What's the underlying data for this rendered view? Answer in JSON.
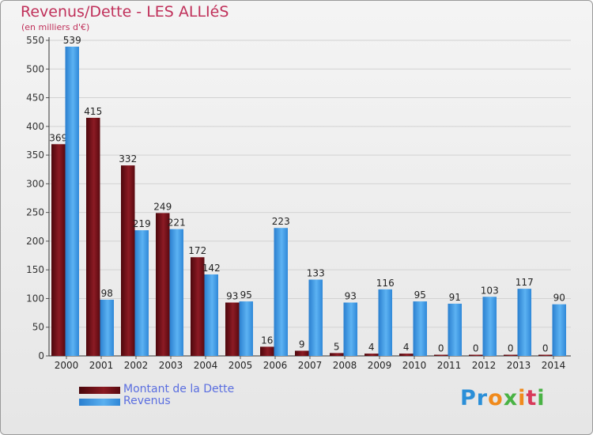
{
  "title": "Revenus/Dette - LES ALLIéS",
  "subtitle": "(en milliers d'€)",
  "legend": [
    {
      "label": "Montant de la Dette",
      "color": "#6b0d12"
    },
    {
      "label": "Revenus",
      "color": "#3c9ae8"
    }
  ],
  "logo": {
    "letters": [
      "P",
      "r",
      "o",
      "x",
      "i",
      "t",
      "i"
    ],
    "colors": [
      "#2b8fd8",
      "#2b8fd8",
      "#f08a1c",
      "#49b244",
      "#f08a1c",
      "#d83a5a",
      "#49b244"
    ]
  },
  "chart_data": {
    "type": "bar",
    "title": "Revenus/Dette - LES ALLIéS",
    "ylabel": "(en milliers d'€)",
    "xlabel": "",
    "ylim": [
      0,
      550
    ],
    "yticks": [
      0,
      50,
      100,
      150,
      200,
      250,
      300,
      350,
      400,
      450,
      500,
      550
    ],
    "categories": [
      "2000",
      "2001",
      "2002",
      "2003",
      "2004",
      "2005",
      "2006",
      "2007",
      "2008",
      "2009",
      "2010",
      "2011",
      "2012",
      "2013",
      "2014"
    ],
    "series": [
      {
        "name": "Montant de la Dette",
        "values": [
          369,
          415,
          332,
          249,
          172,
          93,
          16,
          9,
          5,
          4,
          4,
          0,
          0,
          0,
          0
        ]
      },
      {
        "name": "Revenus",
        "values": [
          539,
          98,
          219,
          221,
          142,
          95,
          223,
          133,
          93,
          116,
          95,
          91,
          103,
          117,
          90
        ]
      }
    ]
  }
}
